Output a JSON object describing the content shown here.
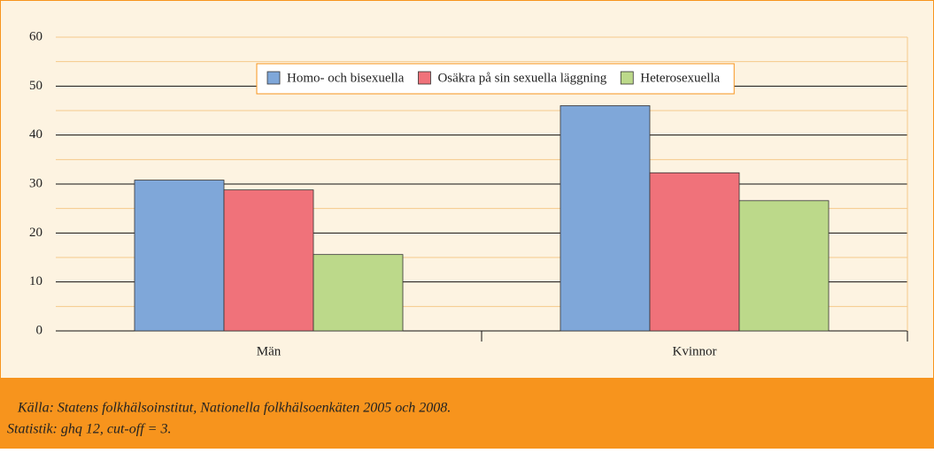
{
  "chart_data": {
    "type": "bar",
    "categories": [
      "Män",
      "Kvinnor"
    ],
    "series": [
      {
        "name": "Homo- och bisexuella",
        "color": "#7fa7d9",
        "values": [
          30.8,
          46
        ]
      },
      {
        "name": "Osäkra på sin sexuella läggning",
        "color": "#f0727a",
        "values": [
          28.8,
          32.3
        ]
      },
      {
        "name": "Heterosexuella",
        "color": "#bcd98a",
        "values": [
          15.6,
          26.6
        ]
      }
    ],
    "ylim": [
      0,
      60
    ],
    "yticks": [
      0,
      10,
      20,
      30,
      40,
      50,
      60
    ],
    "minor_yticks": [
      5,
      15,
      25,
      35,
      45,
      55
    ],
    "grid": true,
    "legend": "top"
  },
  "source": [
    "Källa: Statens folkhälsoinstitut, Nationella folkhälsoenkäten 2005 och 2008.",
    "Statistik: ghq 12, cut-off = 3."
  ]
}
